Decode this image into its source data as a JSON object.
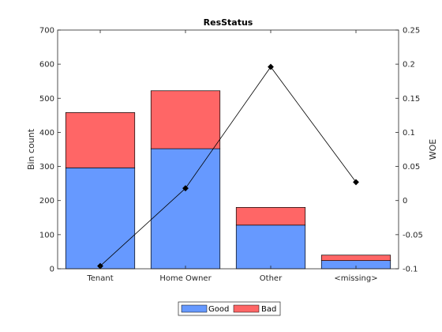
{
  "chart_data": {
    "type": "bar",
    "title": "ResStatus",
    "categories": [
      "Tenant",
      "Home Owner",
      "Other",
      "<missing>"
    ],
    "ylabel": "Bin count",
    "y2label": "WOE",
    "ylim": [
      0,
      700
    ],
    "y2lim": [
      -0.1,
      0.25
    ],
    "yticks": [
      0,
      100,
      200,
      300,
      400,
      500,
      600,
      700
    ],
    "y2ticks": [
      "-0.1",
      "-0.05",
      "0",
      "0.05",
      "0.1",
      "0.15",
      "0.2",
      "0.25"
    ],
    "stacked": true,
    "series": [
      {
        "name": "Good",
        "color": "#6699ff",
        "values": [
          296,
          352,
          128,
          24
        ]
      },
      {
        "name": "Bad",
        "color": "#ff6666",
        "values": [
          162,
          170,
          52,
          16
        ]
      }
    ],
    "woe": {
      "axis": "right",
      "color": "#000000",
      "marker": "diamond",
      "values": [
        -0.096,
        0.018,
        0.196,
        0.027
      ]
    },
    "legend_position": "bottom-center",
    "grid": false
  }
}
